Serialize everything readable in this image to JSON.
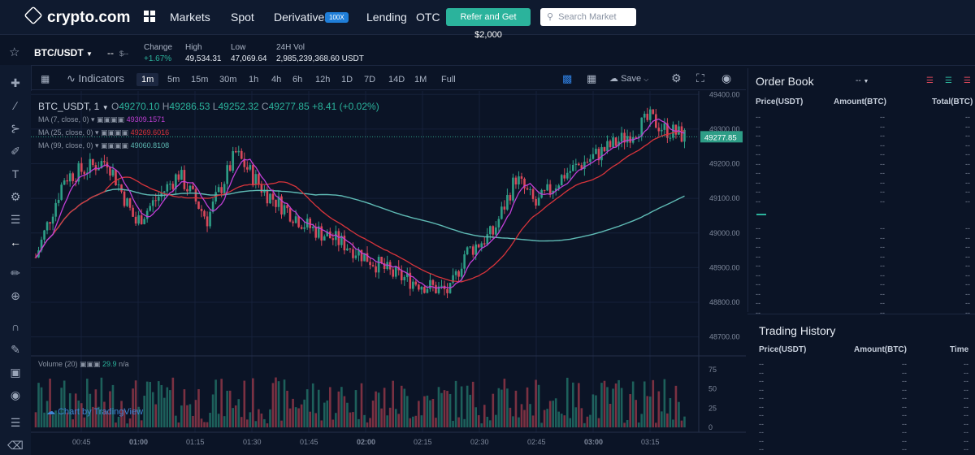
{
  "nav": {
    "logo": "crypto.com",
    "items": [
      "Markets",
      "Spot",
      "Derivatives",
      "Lending",
      "OTC"
    ],
    "derivatives_badge": "100X",
    "refer_button": "Refer and Get $2,000",
    "search_placeholder": "Search Market"
  },
  "ticker": {
    "pair": "BTC/USDT",
    "price": "--",
    "price_usd": "$--",
    "change_label": "Change",
    "change_value": "+1.67%",
    "high_label": "High",
    "high_value": "49,534.31",
    "low_label": "Low",
    "low_value": "47,069.64",
    "vol_label": "24H Vol",
    "vol_value": "2,985,239,368.60 USDT"
  },
  "chart_toolbar": {
    "indicators": "Indicators",
    "timeframes": [
      "1m",
      "5m",
      "15m",
      "30m",
      "1h",
      "4h",
      "6h",
      "12h",
      "1D",
      "7D",
      "14D",
      "1M",
      "Full"
    ],
    "active_timeframe": "1m",
    "save": "Save"
  },
  "legend": {
    "symbol": "BTC_USDT, 1",
    "o_label": "O",
    "o": "49270.10",
    "h_label": "H",
    "h": "49286.53",
    "l_label": "L",
    "l": "49252.32",
    "c_label": "C",
    "c": "49277.85",
    "chg": "+8.41 (+0.02%)",
    "ma": [
      {
        "label": "MA (7, close, 0)",
        "value": "49309.1571",
        "color": "#c13fd6"
      },
      {
        "label": "MA (25, close, 0)",
        "value": "49269.6016",
        "color": "#d8343b"
      },
      {
        "label": "MA (99, close, 0)",
        "value": "49060.8108",
        "color": "#5fbbb5"
      }
    ],
    "volume_label": "Volume (20)",
    "volume_value": "29.9",
    "volume_na": "n/a",
    "watermark": "Chart by TradingView"
  },
  "price_axis": [
    "49400.00",
    "49300.00",
    "49200.00",
    "49100.00",
    "49000.00",
    "48900.00",
    "48800.00",
    "48700.00"
  ],
  "current_price": "49277.85",
  "volume_axis": [
    "75",
    "50",
    "25",
    "0"
  ],
  "time_axis": [
    "00:45",
    "01:00",
    "01:15",
    "01:30",
    "01:45",
    "02:00",
    "02:15",
    "02:30",
    "02:45",
    "03:00",
    "03:15"
  ],
  "orderbook": {
    "title": "Order Book",
    "precision": "--",
    "columns": [
      "Price(USDT)",
      "Amount(BTC)",
      "Total(BTC)"
    ],
    "mid": "--"
  },
  "trading_history": {
    "title": "Trading History",
    "columns": [
      "Price(USDT)",
      "Amount(BTC)",
      "Time"
    ]
  },
  "colors": {
    "up": "#2e9e87",
    "down": "#d9485a",
    "accent": "#2bb39c",
    "background": "#0b1426"
  }
}
